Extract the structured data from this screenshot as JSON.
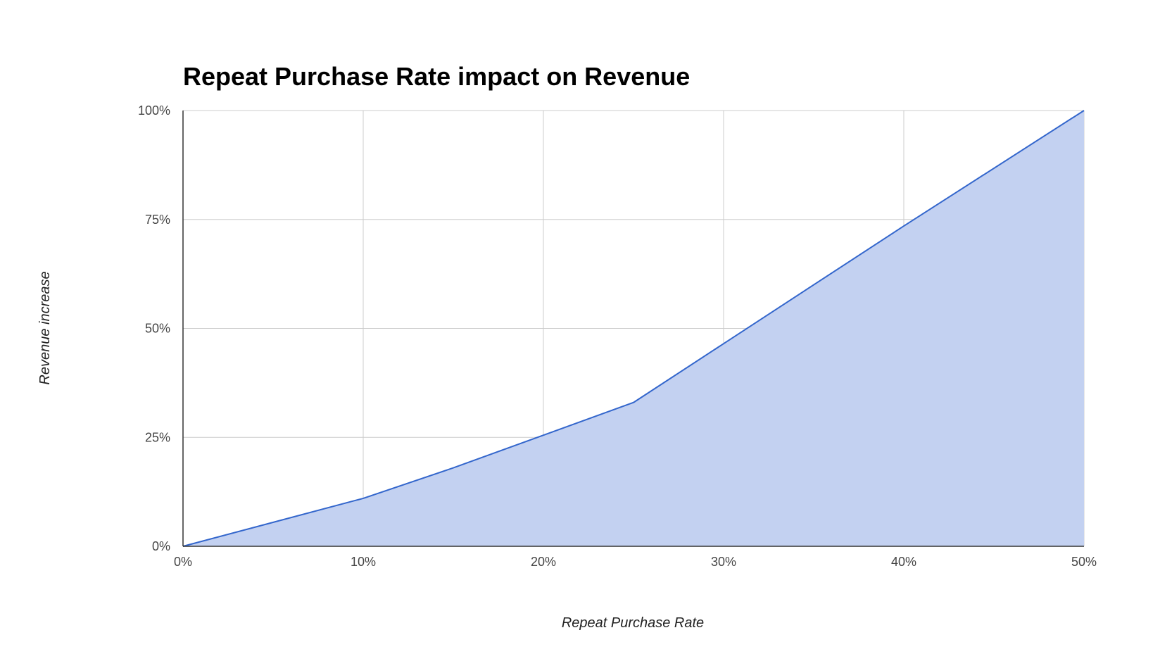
{
  "chart_data": {
    "type": "area",
    "title": "Repeat Purchase Rate impact on Revenue",
    "xlabel": "Repeat Purchase Rate",
    "ylabel": "Revenue increase",
    "x": [
      0,
      10,
      15,
      20,
      25,
      30,
      40,
      50
    ],
    "series": [
      {
        "values": [
          0,
          11,
          18,
          25.5,
          33,
          46.5,
          73.5,
          100
        ]
      }
    ],
    "xlim": [
      0,
      50
    ],
    "ylim": [
      0,
      100
    ],
    "x_ticks": [
      0,
      10,
      20,
      30,
      40,
      50
    ],
    "y_ticks": [
      0,
      25,
      50,
      75,
      100
    ],
    "x_tick_labels": [
      "0%",
      "10%",
      "20%",
      "30%",
      "40%",
      "50%"
    ],
    "y_tick_labels": [
      "0%",
      "25%",
      "50%",
      "75%",
      "100%"
    ],
    "grid": true,
    "legend": "none",
    "colors": {
      "line": "#3366cc",
      "fill": "#c3d1f1",
      "grid": "#cccccc",
      "axis": "#333333"
    }
  }
}
